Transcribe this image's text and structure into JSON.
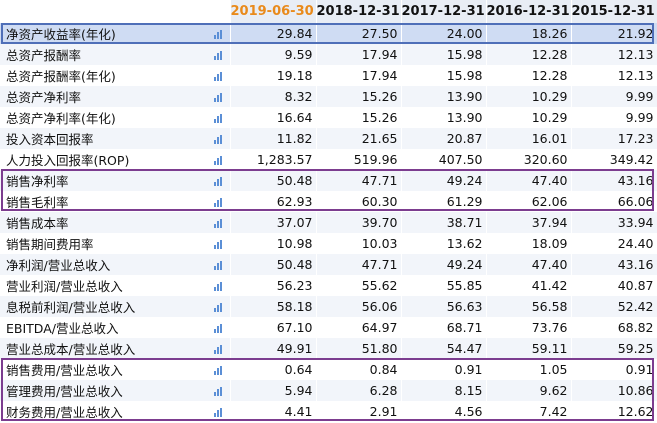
{
  "table": {
    "columns": [
      "2019-06-30",
      "2018-12-31",
      "2017-12-31",
      "2016-12-31",
      "2015-12-31"
    ],
    "rows": [
      {
        "label": "净资产收益率(年化)",
        "values": [
          "29.84",
          "27.50",
          "24.00",
          "18.26",
          "21.92"
        ]
      },
      {
        "label": "总资产报酬率",
        "values": [
          "9.59",
          "17.94",
          "15.98",
          "12.28",
          "12.13"
        ]
      },
      {
        "label": "总资产报酬率(年化)",
        "values": [
          "19.18",
          "17.94",
          "15.98",
          "12.28",
          "12.13"
        ]
      },
      {
        "label": "总资产净利率",
        "values": [
          "8.32",
          "15.26",
          "13.90",
          "10.29",
          "9.99"
        ]
      },
      {
        "label": "总资产净利率(年化)",
        "values": [
          "16.64",
          "15.26",
          "13.90",
          "10.29",
          "9.99"
        ]
      },
      {
        "label": "投入资本回报率",
        "values": [
          "11.82",
          "21.65",
          "20.87",
          "16.01",
          "17.23"
        ]
      },
      {
        "label": "人力投入回报率(ROP)",
        "values": [
          "1,283.57",
          "519.96",
          "407.50",
          "320.60",
          "349.42"
        ]
      },
      {
        "label": "销售净利率",
        "values": [
          "50.48",
          "47.71",
          "49.24",
          "47.40",
          "43.16"
        ]
      },
      {
        "label": "销售毛利率",
        "values": [
          "62.93",
          "60.30",
          "61.29",
          "62.06",
          "66.06"
        ]
      },
      {
        "label": "销售成本率",
        "values": [
          "37.07",
          "39.70",
          "38.71",
          "37.94",
          "33.94"
        ]
      },
      {
        "label": "销售期间费用率",
        "values": [
          "10.98",
          "10.03",
          "13.62",
          "18.09",
          "24.40"
        ]
      },
      {
        "label": "净利润/营业总收入",
        "values": [
          "50.48",
          "47.71",
          "49.24",
          "47.40",
          "43.16"
        ]
      },
      {
        "label": "营业利润/营业总收入",
        "values": [
          "56.23",
          "55.62",
          "55.85",
          "41.42",
          "40.87"
        ]
      },
      {
        "label": "息税前利润/营业总收入",
        "values": [
          "58.18",
          "56.06",
          "56.63",
          "56.58",
          "52.42"
        ]
      },
      {
        "label": "EBITDA/营业总收入",
        "values": [
          "67.10",
          "64.97",
          "68.71",
          "73.76",
          "68.82"
        ]
      },
      {
        "label": "营业总成本/营业总收入",
        "values": [
          "49.91",
          "51.80",
          "54.47",
          "59.11",
          "59.25"
        ]
      },
      {
        "label": "销售费用/营业总收入",
        "values": [
          "0.64",
          "0.84",
          "0.91",
          "1.05",
          "0.91"
        ]
      },
      {
        "label": "管理费用/营业总收入",
        "values": [
          "5.94",
          "6.28",
          "8.15",
          "9.62",
          "10.86"
        ]
      },
      {
        "label": "财务费用/营业总收入",
        "values": [
          "4.41",
          "2.91",
          "4.56",
          "7.42",
          "12.62"
        ]
      }
    ]
  },
  "icons": {
    "row_chart": "bar-chart-icon"
  },
  "colors": {
    "highlight_date": "#e98a1b",
    "box_purple": "#7c3d8f",
    "box_blue": "#4f6fb8",
    "icon_blue": "#5b8fd6"
  }
}
